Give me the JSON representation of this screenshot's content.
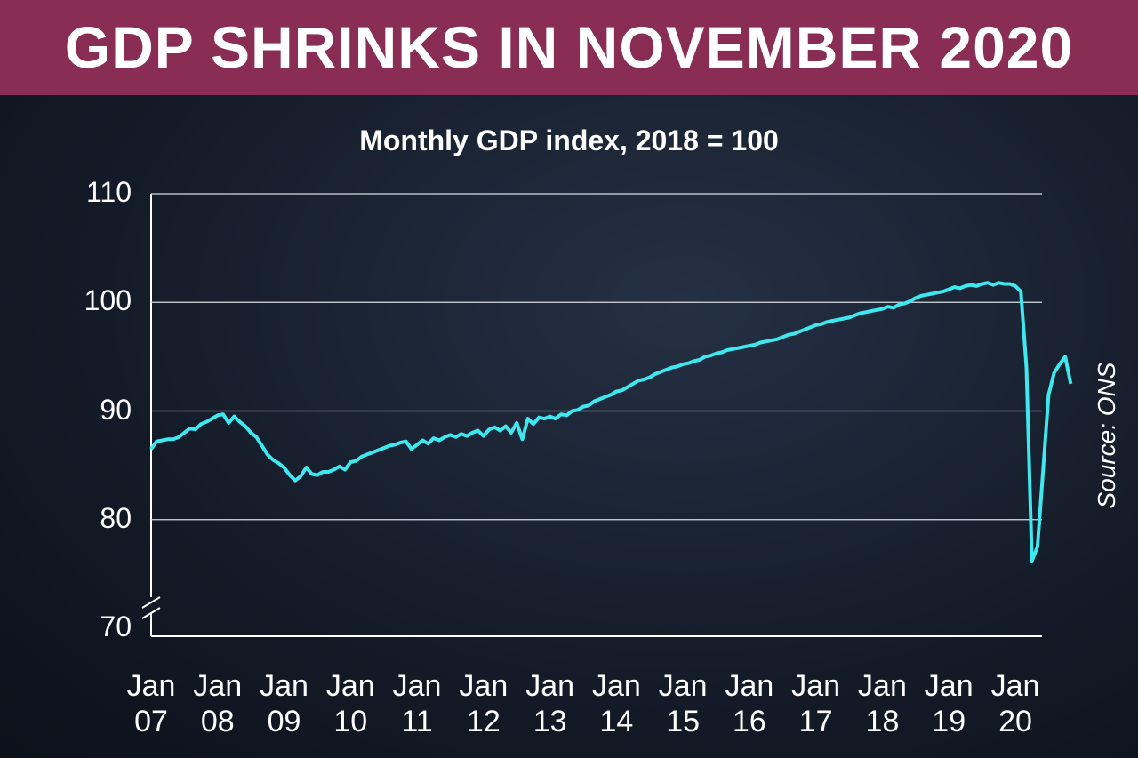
{
  "chart_data": {
    "type": "line",
    "title": "GDP SHRINKS IN NOVEMBER 2020",
    "subtitle": "Monthly GDP index, 2018 = 100",
    "annotation": "Source: ONS",
    "categories": [
      "Jan 07",
      null,
      null,
      null,
      null,
      null,
      null,
      null,
      null,
      null,
      null,
      null,
      "Jan 08",
      null,
      null,
      null,
      null,
      null,
      null,
      null,
      null,
      null,
      null,
      null,
      "Jan 09",
      null,
      null,
      null,
      null,
      null,
      null,
      null,
      null,
      null,
      null,
      null,
      "Jan 10",
      null,
      null,
      null,
      null,
      null,
      null,
      null,
      null,
      null,
      null,
      null,
      "Jan 11",
      null,
      null,
      null,
      null,
      null,
      null,
      null,
      null,
      null,
      null,
      null,
      "Jan 12",
      null,
      null,
      null,
      null,
      null,
      null,
      null,
      null,
      null,
      null,
      null,
      "Jan 13",
      null,
      null,
      null,
      null,
      null,
      null,
      null,
      null,
      null,
      null,
      null,
      "Jan 14",
      null,
      null,
      null,
      null,
      null,
      null,
      null,
      null,
      null,
      null,
      null,
      "Jan 15",
      null,
      null,
      null,
      null,
      null,
      null,
      null,
      null,
      null,
      null,
      null,
      "Jan 16",
      null,
      null,
      null,
      null,
      null,
      null,
      null,
      null,
      null,
      null,
      null,
      "Jan 17",
      null,
      null,
      null,
      null,
      null,
      null,
      null,
      null,
      null,
      null,
      null,
      "Jan 18",
      null,
      null,
      null,
      null,
      null,
      null,
      null,
      null,
      null,
      null,
      null,
      "Jan 19",
      null,
      null,
      null,
      null,
      null,
      null,
      null,
      null,
      null,
      null,
      null,
      "Jan 20",
      null,
      null,
      null,
      null,
      null,
      null,
      null,
      null,
      null,
      null
    ],
    "values": [
      86.5,
      87.2,
      87.3,
      87.4,
      87.4,
      87.6,
      88.0,
      88.4,
      88.3,
      88.8,
      89.0,
      89.3,
      89.6,
      89.7,
      88.9,
      89.5,
      89.0,
      88.6,
      88.0,
      87.6,
      86.8,
      86.0,
      85.5,
      85.2,
      84.8,
      84.1,
      83.6,
      84.0,
      84.8,
      84.2,
      84.1,
      84.4,
      84.4,
      84.6,
      84.9,
      84.6,
      85.3,
      85.4,
      85.8,
      86.0,
      86.2,
      86.4,
      86.6,
      86.8,
      86.9,
      87.1,
      87.2,
      86.5,
      86.9,
      87.3,
      87.0,
      87.5,
      87.3,
      87.6,
      87.8,
      87.6,
      87.9,
      87.7,
      88.0,
      88.2,
      87.7,
      88.3,
      88.5,
      88.2,
      88.6,
      88.0,
      88.9,
      87.4,
      89.3,
      88.8,
      89.4,
      89.3,
      89.5,
      89.3,
      89.7,
      89.6,
      90.0,
      90.1,
      90.4,
      90.5,
      90.9,
      91.1,
      91.3,
      91.5,
      91.8,
      91.9,
      92.2,
      92.5,
      92.8,
      92.9,
      93.1,
      93.4,
      93.6,
      93.8,
      94.0,
      94.1,
      94.3,
      94.4,
      94.6,
      94.7,
      95.0,
      95.1,
      95.3,
      95.4,
      95.6,
      95.7,
      95.8,
      95.9,
      96.0,
      96.1,
      96.3,
      96.4,
      96.5,
      96.6,
      96.8,
      97.0,
      97.1,
      97.3,
      97.5,
      97.7,
      97.9,
      98.0,
      98.2,
      98.3,
      98.4,
      98.5,
      98.6,
      98.8,
      99.0,
      99.1,
      99.2,
      99.3,
      99.4,
      99.6,
      99.5,
      99.8,
      99.9,
      100.1,
      100.4,
      100.6,
      100.7,
      100.8,
      100.9,
      101.0,
      101.2,
      101.4,
      101.3,
      101.5,
      101.6,
      101.5,
      101.7,
      101.8,
      101.6,
      101.8,
      101.7,
      101.7,
      101.5,
      101.0,
      94.0,
      76.2,
      77.5,
      84.5,
      91.5,
      93.5,
      94.3,
      95.0,
      92.5
    ],
    "color": "#3ee8f0",
    "ylim": [
      70,
      110
    ],
    "yticks": [
      70,
      80,
      90,
      100,
      110
    ],
    "grid": true
  }
}
